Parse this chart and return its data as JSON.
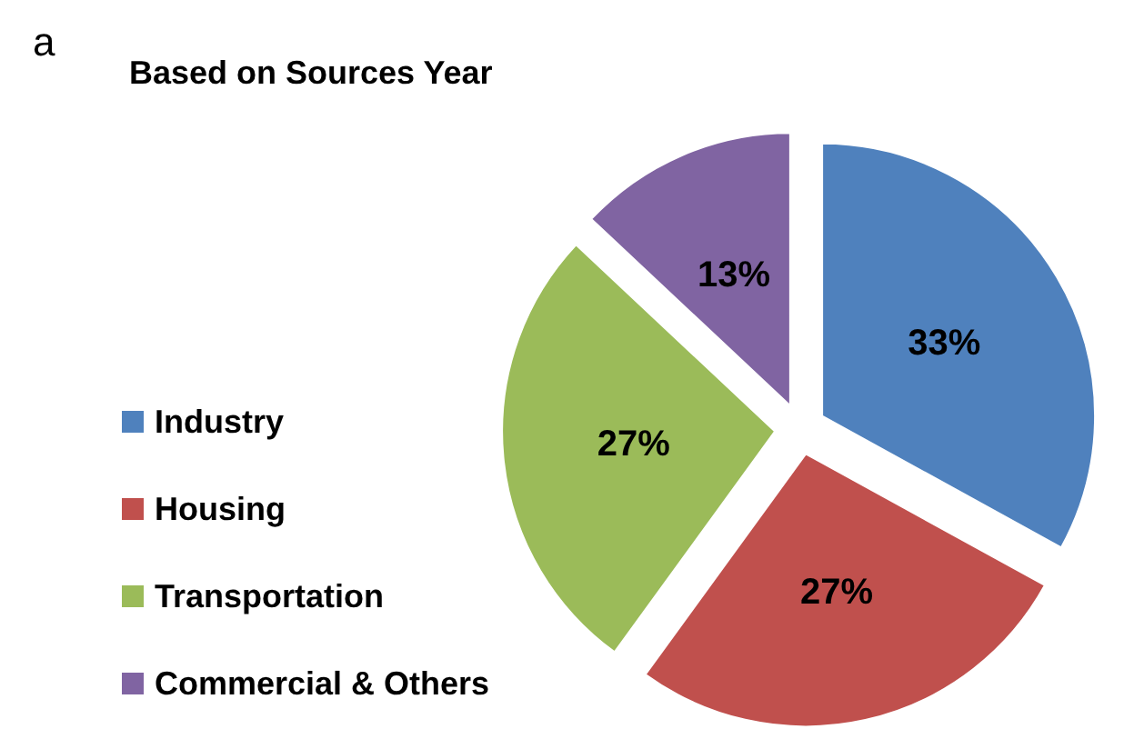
{
  "chart_data": {
    "type": "pie",
    "title": "Based on Sources Year",
    "annotations": [
      "a"
    ],
    "categories": [
      "Industry",
      "Housing",
      "Transportation",
      "Commercial & Others"
    ],
    "values": [
      33,
      27,
      27,
      13
    ],
    "colors": [
      "#4f81bd",
      "#c0504d",
      "#9bbb59",
      "#8064a2"
    ],
    "value_labels": [
      "33%",
      "27%",
      "27%",
      "13%"
    ],
    "legend": "left"
  }
}
